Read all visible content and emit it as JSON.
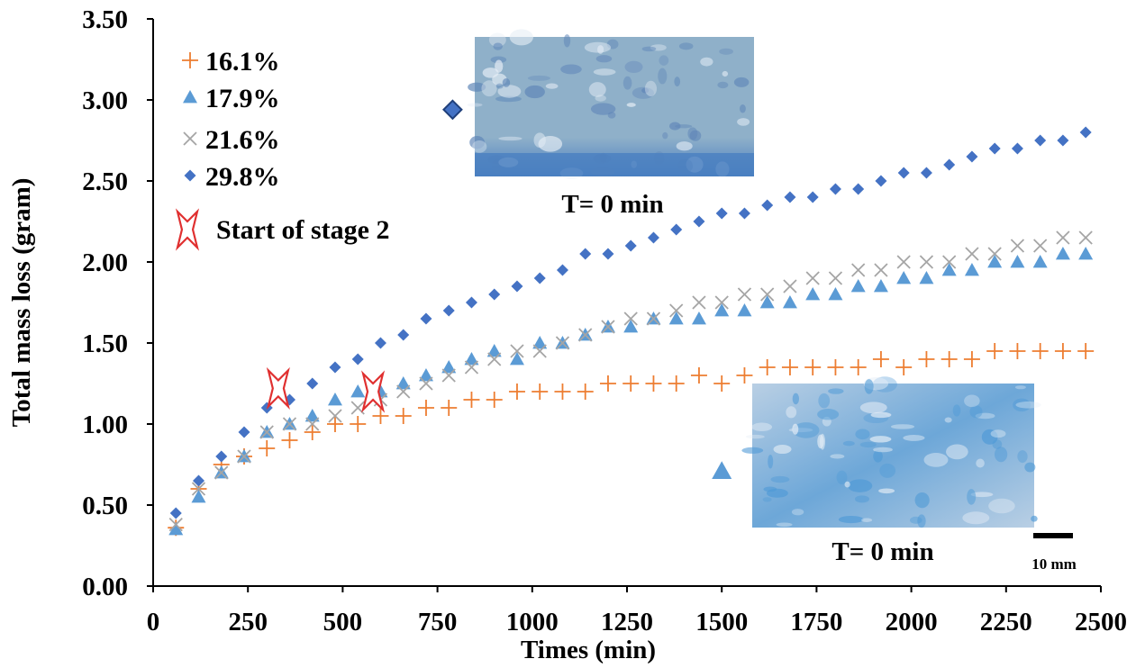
{
  "chart_data": {
    "type": "scatter",
    "title": "",
    "xlabel": "Times (min)",
    "ylabel": "Total mass loss (gram)",
    "xlim": [
      0,
      2500
    ],
    "ylim": [
      0,
      3.5
    ],
    "x_ticks": [
      "0",
      "250",
      "500",
      "750",
      "1000",
      "1250",
      "1500",
      "1750",
      "2000",
      "2250",
      "2500"
    ],
    "y_ticks": [
      "0.00",
      "0.50",
      "1.00",
      "1.50",
      "2.00",
      "2.50",
      "3.00",
      "3.50"
    ],
    "grid": false,
    "legend_position": "top-left",
    "x": [
      60,
      120,
      180,
      240,
      300,
      360,
      420,
      480,
      540,
      600,
      660,
      720,
      780,
      840,
      900,
      960,
      1020,
      1080,
      1140,
      1200,
      1260,
      1320,
      1380,
      1440,
      1500,
      1560,
      1620,
      1680,
      1740,
      1800,
      1860,
      1920,
      1980,
      2040,
      2100,
      2160,
      2220,
      2280,
      2340,
      2400,
      2460
    ],
    "series": [
      {
        "name": "16.1%",
        "marker": "plus",
        "color": "#ED7D31",
        "values": [
          0.36,
          0.6,
          0.75,
          0.8,
          0.85,
          0.9,
          0.95,
          1.0,
          1.0,
          1.05,
          1.05,
          1.1,
          1.1,
          1.15,
          1.15,
          1.2,
          1.2,
          1.2,
          1.2,
          1.25,
          1.25,
          1.25,
          1.25,
          1.3,
          1.25,
          1.3,
          1.35,
          1.35,
          1.35,
          1.35,
          1.35,
          1.4,
          1.35,
          1.4,
          1.4,
          1.4,
          1.45,
          1.45,
          1.45,
          1.45,
          1.45
        ]
      },
      {
        "name": "17.9%",
        "marker": "triangle",
        "color": "#5B9BD5",
        "values": [
          0.35,
          0.55,
          0.7,
          0.8,
          0.95,
          1.0,
          1.05,
          1.15,
          1.2,
          1.2,
          1.25,
          1.3,
          1.35,
          1.4,
          1.45,
          1.4,
          1.5,
          1.5,
          1.55,
          1.6,
          1.6,
          1.65,
          1.65,
          1.65,
          1.7,
          1.7,
          1.75,
          1.75,
          1.8,
          1.8,
          1.85,
          1.85,
          1.9,
          1.9,
          1.95,
          1.95,
          2.0,
          2.0,
          2.0,
          2.05,
          2.05
        ]
      },
      {
        "name": "21.6%",
        "marker": "cross",
        "color": "#A5A5A5",
        "values": [
          0.38,
          0.6,
          0.7,
          0.8,
          0.95,
          1.0,
          1.0,
          1.05,
          1.1,
          1.15,
          1.2,
          1.25,
          1.3,
          1.35,
          1.4,
          1.45,
          1.45,
          1.5,
          1.55,
          1.6,
          1.65,
          1.65,
          1.7,
          1.75,
          1.75,
          1.8,
          1.8,
          1.85,
          1.9,
          1.9,
          1.95,
          1.95,
          2.0,
          2.0,
          2.0,
          2.05,
          2.05,
          2.1,
          2.1,
          2.15,
          2.15
        ]
      },
      {
        "name": "29.8%",
        "marker": "diamond",
        "color": "#4472C4",
        "values": [
          0.45,
          0.65,
          0.8,
          0.95,
          1.1,
          1.15,
          1.25,
          1.35,
          1.4,
          1.5,
          1.55,
          1.65,
          1.7,
          1.75,
          1.8,
          1.85,
          1.9,
          1.95,
          2.05,
          2.05,
          2.1,
          2.15,
          2.2,
          2.25,
          2.3,
          2.3,
          2.35,
          2.4,
          2.4,
          2.45,
          2.45,
          2.5,
          2.55,
          2.55,
          2.6,
          2.65,
          2.7,
          2.7,
          2.75,
          2.75,
          2.8
        ]
      }
    ],
    "stage2_marker": {
      "label": "Start of stage 2",
      "color": "#E03030",
      "points": [
        [
          330,
          1.22
        ],
        [
          580,
          1.2
        ]
      ]
    },
    "photos": [
      {
        "caption": "T= 0 min",
        "marker": "diamond",
        "marker_color": "#4472C4",
        "marker_point": [
          790,
          2.94
        ],
        "tones": [
          "#8fb0c9",
          "#4a7fc1"
        ]
      },
      {
        "caption": "T= 0 min",
        "marker": "triangle",
        "marker_color": "#5B9BD5",
        "marker_point": [
          1500,
          0.71
        ],
        "tones": [
          "#b9cfe4",
          "#6da7d8"
        ]
      }
    ],
    "scale_bar_label": "10 mm"
  }
}
